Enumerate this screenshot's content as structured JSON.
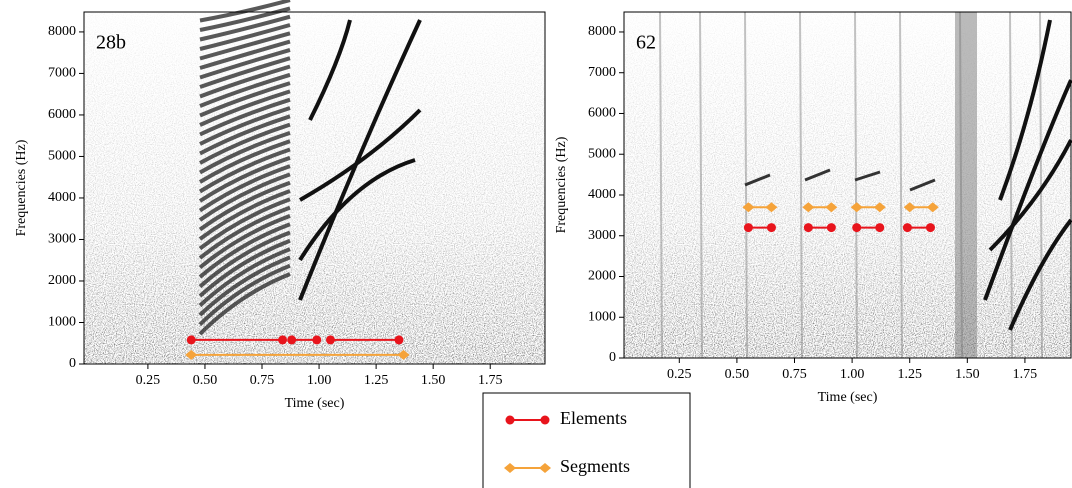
{
  "chart_data": [
    {
      "type": "interval",
      "title": "28b",
      "xlabel": "Time (sec)",
      "ylabel": "Frequencies (Hz)",
      "xlim": [
        -0.03,
        1.99
      ],
      "ylim": [
        0,
        8480
      ],
      "xticks": [
        0.25,
        {
          "value": 0.5,
          "label": "0.50"
        },
        0.75,
        {
          "value": 1.0,
          "label": "1.00"
        },
        1.25,
        {
          "value": 1.5,
          "label": "1.50"
        },
        1.75
      ],
      "yticks": [
        0,
        1000,
        2000,
        3000,
        4000,
        5000,
        6000,
        7000,
        8000
      ],
      "series": [
        {
          "y": 580,
          "intervals": [
            [
              0.44,
              0.84
            ],
            [
              0.88,
              0.99
            ],
            [
              1.05,
              1.35
            ]
          ]
        },
        {
          "y": 220,
          "intervals": [
            [
              0.44,
              1.37
            ]
          ]
        }
      ]
    },
    {
      "type": "interval",
      "title": "62",
      "xlabel": "Time (sec)",
      "ylabel": "Frequencies (Hz)",
      "xlim": [
        0.01,
        1.95
      ],
      "ylim": [
        0,
        8490
      ],
      "xticks": [
        0.25,
        {
          "value": 0.5,
          "label": "0.50"
        },
        0.75,
        {
          "value": 1.0,
          "label": "1.00"
        },
        1.25,
        {
          "value": 1.5,
          "label": "1.50"
        },
        1.75
      ],
      "yticks": [
        0,
        1000,
        2000,
        3000,
        4000,
        5000,
        6000,
        7000,
        8000
      ],
      "series": [
        {
          "y": 3200,
          "intervals": [
            [
              0.55,
              0.65
            ],
            [
              0.81,
              0.91
            ],
            [
              1.02,
              1.12
            ],
            [
              1.24,
              1.34
            ]
          ]
        },
        {
          "y": 3700,
          "intervals": [
            [
              0.55,
              0.65
            ],
            [
              0.81,
              0.91
            ],
            [
              1.02,
              1.12
            ],
            [
              1.25,
              1.35
            ]
          ]
        }
      ]
    }
  ],
  "legend": {
    "series": [
      {
        "name": "Elements",
        "color": "#e8141c",
        "marker": "circle"
      },
      {
        "name": "Segments",
        "color": "#f5a33a",
        "marker": "diamond"
      }
    ]
  }
}
